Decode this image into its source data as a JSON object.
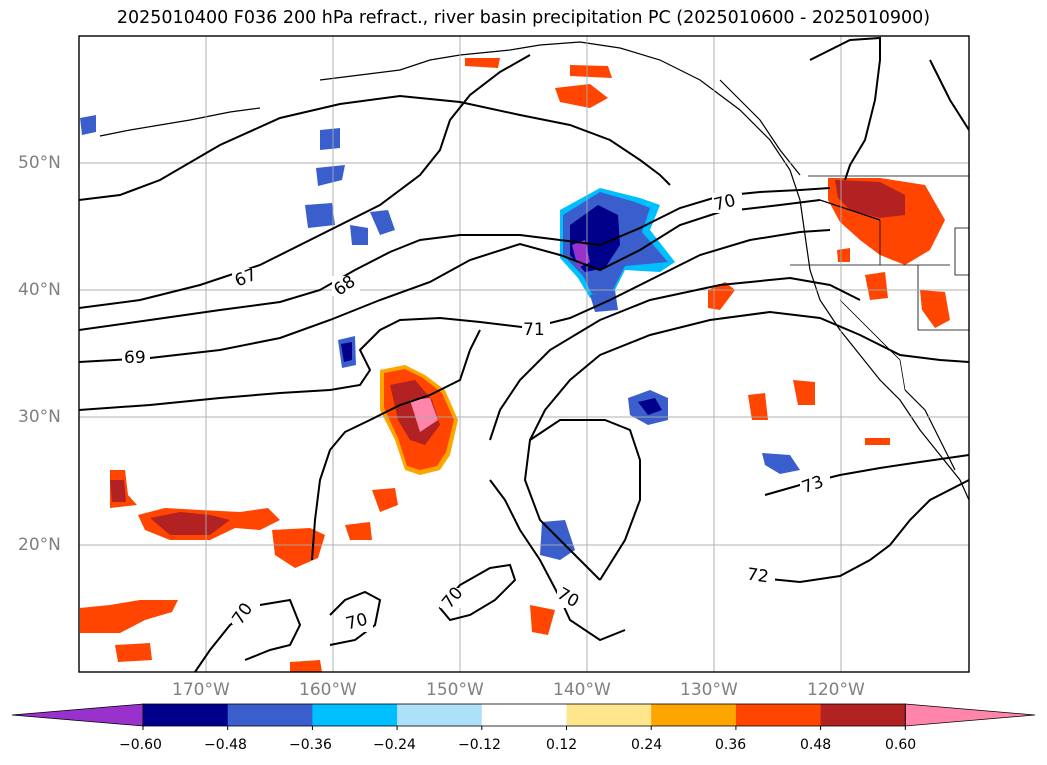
{
  "title": "2025010400 F036 200 hPa refract., river basin precipitation PC (2025010600 - 2025010900)",
  "lat_labels": [
    "50°N",
    "40°N",
    "30°N",
    "20°N"
  ],
  "lon_labels": [
    "170°W",
    "160°W",
    "150°W",
    "140°W",
    "130°W",
    "120°W"
  ],
  "contour_labels": [
    "67",
    "68",
    "69",
    "70",
    "71",
    "70",
    "73",
    "72",
    "70",
    "70",
    "70"
  ],
  "colorbar": {
    "ticks": [
      "−0.60",
      "−0.48",
      "−0.36",
      "−0.24",
      "−0.12",
      "0.12",
      "0.24",
      "0.36",
      "0.48",
      "0.60"
    ],
    "colors": [
      "#9932CC",
      "#00008B",
      "#3A5FCD",
      "#00BFFF",
      "#ADE1FA",
      "#FFFFFF",
      "#FFE68C",
      "#FFA500",
      "#FF4500",
      "#B22222",
      "#FF85AB"
    ]
  }
}
